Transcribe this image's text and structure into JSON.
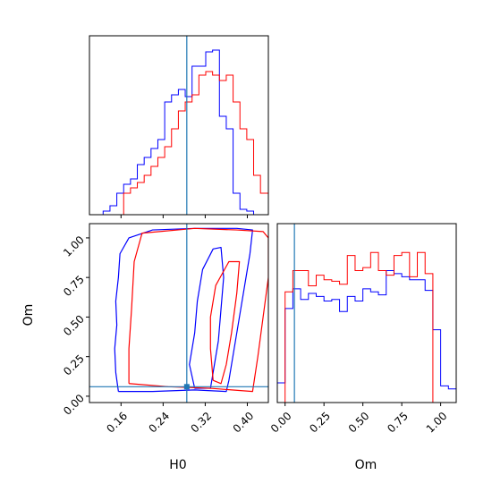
{
  "chart_data": [
    {
      "type": "step-histogram",
      "panel": "H0 marginal",
      "xlim": [
        0.1,
        0.44
      ],
      "series": [
        {
          "color": "#0000ff",
          "bin_edges": [
            0.1,
            0.113,
            0.126,
            0.139,
            0.152,
            0.165,
            0.178,
            0.191,
            0.204,
            0.217,
            0.23,
            0.243,
            0.256,
            0.269,
            0.282,
            0.295,
            0.308,
            0.321,
            0.334,
            0.347,
            0.36,
            0.373,
            0.386,
            0.399,
            0.412,
            0.425,
            0.44
          ],
          "values": [
            0,
            0,
            0.02,
            0.05,
            0.12,
            0.17,
            0.2,
            0.28,
            0.32,
            0.37,
            0.42,
            0.63,
            0.67,
            0.7,
            0.66,
            0.83,
            0.83,
            0.91,
            0.92,
            0.55,
            0.48,
            0.12,
            0.03,
            0.02,
            0,
            0
          ]
        },
        {
          "color": "#ff0000",
          "bin_edges": [
            0.1,
            0.113,
            0.126,
            0.139,
            0.152,
            0.165,
            0.178,
            0.191,
            0.204,
            0.217,
            0.23,
            0.243,
            0.256,
            0.269,
            0.282,
            0.295,
            0.308,
            0.321,
            0.334,
            0.347,
            0.36,
            0.373,
            0.386,
            0.399,
            0.412,
            0.425,
            0.44
          ],
          "values": [
            0,
            0,
            0,
            0,
            0,
            0.12,
            0.15,
            0.18,
            0.22,
            0.27,
            0.32,
            0.38,
            0.48,
            0.58,
            0.63,
            0.67,
            0.78,
            0.8,
            0.78,
            0.75,
            0.78,
            0.63,
            0.48,
            0.42,
            0.22,
            0.12
          ]
        }
      ],
      "truth_line": {
        "color": "#1f77b4",
        "x": 0.285
      }
    },
    {
      "type": "contour",
      "panel": "H0 vs Om joint",
      "xlabel": "H0",
      "ylabel": "Om",
      "xlim": [
        0.1,
        0.44
      ],
      "ylim": [
        -0.04,
        1.09
      ],
      "x_ticks": [
        "0.16",
        "0.24",
        "0.32",
        "0.40"
      ],
      "x_tick_values": [
        0.16,
        0.24,
        0.32,
        0.4
      ],
      "y_ticks": [
        "0.00",
        "0.25",
        "0.50",
        "0.75",
        "1.00"
      ],
      "y_tick_values": [
        0.0,
        0.25,
        0.5,
        0.75,
        1.0
      ],
      "series": [
        {
          "color": "#0000ff",
          "contours": [
            [
              [
                0.155,
                0.03
              ],
              [
                0.15,
                0.15
              ],
              [
                0.148,
                0.3
              ],
              [
                0.152,
                0.45
              ],
              [
                0.15,
                0.6
              ],
              [
                0.155,
                0.75
              ],
              [
                0.158,
                0.9
              ],
              [
                0.175,
                1.0
              ],
              [
                0.22,
                1.05
              ],
              [
                0.3,
                1.06
              ],
              [
                0.38,
                1.06
              ],
              [
                0.41,
                1.05
              ],
              [
                0.405,
                0.9
              ],
              [
                0.395,
                0.7
              ],
              [
                0.385,
                0.5
              ],
              [
                0.375,
                0.3
              ],
              [
                0.365,
                0.1
              ],
              [
                0.36,
                0.03
              ],
              [
                0.3,
                0.04
              ],
              [
                0.22,
                0.03
              ],
              [
                0.155,
                0.03
              ]
            ],
            [
              [
                0.3,
                0.05
              ],
              [
                0.29,
                0.2
              ],
              [
                0.3,
                0.4
              ],
              [
                0.305,
                0.6
              ],
              [
                0.315,
                0.8
              ],
              [
                0.335,
                0.93
              ],
              [
                0.35,
                0.94
              ],
              [
                0.355,
                0.75
              ],
              [
                0.35,
                0.55
              ],
              [
                0.345,
                0.35
              ],
              [
                0.335,
                0.15
              ],
              [
                0.33,
                0.05
              ],
              [
                0.3,
                0.05
              ]
            ]
          ]
        },
        {
          "color": "#ff0000",
          "contours": [
            [
              [
                0.175,
                0.08
              ],
              [
                0.175,
                0.3
              ],
              [
                0.18,
                0.55
              ],
              [
                0.185,
                0.85
              ],
              [
                0.2,
                1.03
              ],
              [
                0.3,
                1.06
              ],
              [
                0.38,
                1.05
              ],
              [
                0.43,
                1.04
              ],
              [
                0.44,
                1.0
              ],
              [
                0.44,
                0.75
              ],
              [
                0.43,
                0.5
              ],
              [
                0.42,
                0.25
              ],
              [
                0.41,
                0.03
              ],
              [
                0.33,
                0.05
              ],
              [
                0.25,
                0.06
              ],
              [
                0.175,
                0.08
              ]
            ],
            [
              [
                0.335,
                0.1
              ],
              [
                0.33,
                0.3
              ],
              [
                0.33,
                0.5
              ],
              [
                0.34,
                0.7
              ],
              [
                0.365,
                0.85
              ],
              [
                0.385,
                0.85
              ],
              [
                0.38,
                0.65
              ],
              [
                0.37,
                0.4
              ],
              [
                0.36,
                0.2
              ],
              [
                0.35,
                0.08
              ],
              [
                0.335,
                0.1
              ]
            ]
          ]
        }
      ],
      "truth_lines": {
        "color": "#1f77b4",
        "x": 0.285,
        "y": 0.06
      }
    },
    {
      "type": "step-histogram",
      "panel": "Om marginal",
      "xlabel": "Om",
      "xlim": [
        -0.05,
        1.1
      ],
      "x_ticks": [
        "0.00",
        "0.25",
        "0.50",
        "0.75",
        "1.00"
      ],
      "x_tick_values": [
        0.0,
        0.25,
        0.5,
        0.75,
        1.0
      ],
      "series": [
        {
          "color": "#0000ff",
          "bin_edges": [
            -0.05,
            0.0,
            0.05,
            0.1,
            0.15,
            0.2,
            0.25,
            0.3,
            0.35,
            0.4,
            0.45,
            0.5,
            0.55,
            0.6,
            0.65,
            0.7,
            0.75,
            0.8,
            0.85,
            0.9,
            0.95,
            1.0,
            1.05,
            1.1
          ],
          "values": [
            0.13,
            0.62,
            0.75,
            0.68,
            0.72,
            0.7,
            0.67,
            0.68,
            0.6,
            0.7,
            0.67,
            0.75,
            0.73,
            0.71,
            0.87,
            0.85,
            0.83,
            0.81,
            0.81,
            0.74,
            0.48,
            0.11,
            0.09
          ],
          "note": "values in relative density"
        },
        {
          "color": "#ff0000",
          "bin_edges": [
            -0.05,
            0.0,
            0.05,
            0.1,
            0.15,
            0.2,
            0.25,
            0.3,
            0.35,
            0.4,
            0.45,
            0.5,
            0.55,
            0.6,
            0.65,
            0.7,
            0.75,
            0.8,
            0.85,
            0.9,
            0.95,
            1.0,
            1.05,
            1.1
          ],
          "values": [
            0,
            0.73,
            0.87,
            0.87,
            0.77,
            0.84,
            0.81,
            0.8,
            0.78,
            0.97,
            0.87,
            0.89,
            0.99,
            0.87,
            0.84,
            0.97,
            0.99,
            0.83,
            0.99,
            0.85,
            0,
            0,
            0
          ]
        }
      ],
      "truth_line": {
        "color": "#1f77b4",
        "x": 0.06
      }
    }
  ],
  "labels": {
    "bottom_x": "H0",
    "joint_y": "Om",
    "right_x": "Om"
  }
}
